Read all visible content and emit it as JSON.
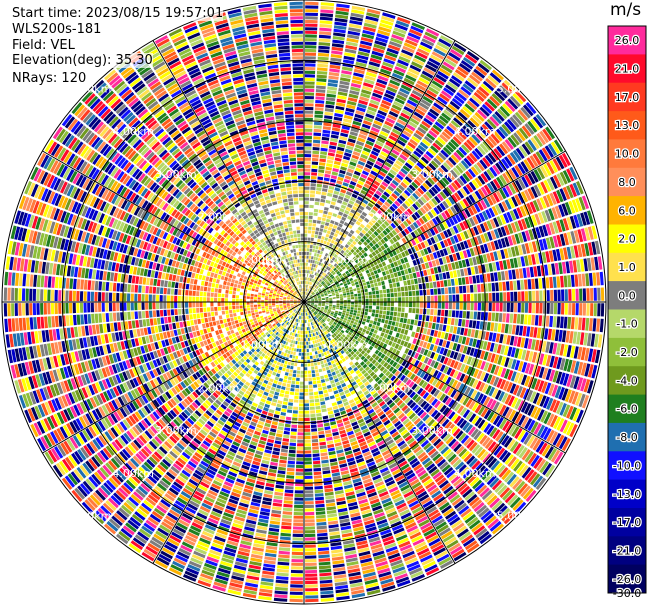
{
  "header": {
    "start_time": "Start time: 2023/08/15 19:57:01",
    "instrument": "WLS200s-181",
    "field": "Field: VEL",
    "elevation": "Elevation(deg): 35.30",
    "nrays": "NRays: 120"
  },
  "colorbar": {
    "unit": "m/s",
    "stops": [
      {
        "label": "26.0",
        "color": "#ff2b9c"
      },
      {
        "label": "21.0",
        "color": "#ff0a2c"
      },
      {
        "label": "17.0",
        "color": "#ff3a20"
      },
      {
        "label": "13.0",
        "color": "#ff5a1a"
      },
      {
        "label": "10.0",
        "color": "#ff7a3c"
      },
      {
        "label": "8.0",
        "color": "#ff8f5a"
      },
      {
        "label": "6.0",
        "color": "#ffb300"
      },
      {
        "label": "2.0",
        "color": "#ffff00"
      },
      {
        "label": "1.0",
        "color": "#ffe14d"
      },
      {
        "label": "0.0",
        "color": "#7d7d7d"
      },
      {
        "label": "-1.0",
        "color": "#b5d86a"
      },
      {
        "label": "-2.0",
        "color": "#8fbf3a"
      },
      {
        "label": "-4.0",
        "color": "#6f9a1e"
      },
      {
        "label": "-6.0",
        "color": "#1f7f1f"
      },
      {
        "label": "-8.0",
        "color": "#1f6fb0"
      },
      {
        "label": "-10.0",
        "color": "#1010ff"
      },
      {
        "label": "-13.0",
        "color": "#0000c8"
      },
      {
        "label": "-17.0",
        "color": "#0000a0"
      },
      {
        "label": "-21.0",
        "color": "#000080"
      },
      {
        "label": "-26.0",
        "color": "#000060"
      },
      {
        "label": "-30.0",
        "color": ""
      }
    ]
  },
  "chart_data": {
    "type": "heatmap",
    "subtype": "polar-ppi",
    "field": "VEL",
    "units": "m/s",
    "elevation_deg": 35.3,
    "n_rays": 120,
    "range_rings_km": [
      1.0,
      2.0,
      3.0,
      4.0,
      5.0
    ],
    "ring_labels": {
      "1.0": "1.00km",
      "2.0": "2.00km",
      "3.0": "3.00km",
      "4.0": "4.00km",
      "5.0": "5.00km"
    },
    "max_range_km": 5.0,
    "inner_signal_region_km": 1.9,
    "spoke_angles_deg": [
      0,
      30,
      60,
      90,
      120,
      150,
      180,
      210,
      240,
      270,
      300,
      330
    ],
    "vmin": -30.0,
    "vmax": 26.0,
    "dominant_sectors": [
      {
        "azimuth_deg_from": 230,
        "azimuth_deg_to": 320,
        "values": [
          2.0,
          8.0,
          13.0
        ]
      },
      {
        "azimuth_deg_from": 40,
        "azimuth_deg_to": 140,
        "values": [
          -4.0,
          -6.0,
          -2.0
        ]
      },
      {
        "azimuth_deg_from": 320,
        "azimuth_deg_to": 40,
        "values": [
          0.0,
          -1.0,
          1.0
        ]
      },
      {
        "azimuth_deg_from": 140,
        "azimuth_deg_to": 230,
        "values": [
          2.0,
          -1.0,
          1.0,
          -8.0
        ]
      }
    ]
  }
}
